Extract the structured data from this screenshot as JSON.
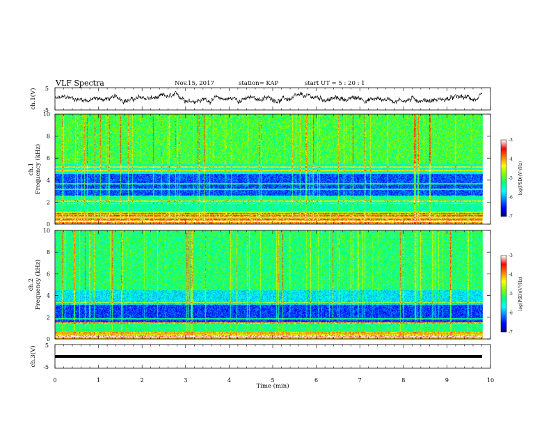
{
  "header": {
    "title": "VLF Spectra",
    "date": "Nov.15, 2017",
    "station": "station= KAP",
    "start": "start  UT =   5 : 20 : 1"
  },
  "chart_data": [
    {
      "type": "line",
      "name": "ch1-waveform",
      "ylabel": "ch.1(V)",
      "ylim": [
        -5,
        5
      ],
      "yticks": [
        "5",
        "-5"
      ],
      "xlim": [
        0,
        10
      ],
      "amplitude_description_values": {
        "mean": 0,
        "approx_range": [
          -2.5,
          2.5
        ]
      }
    },
    {
      "type": "heatmap",
      "name": "ch1-spectrogram",
      "ylabel": "ch.1\nFrequency (kHz)",
      "ylabel_line1": "ch.1",
      "ylabel_line2": "Frequency  (kHz)",
      "ylim": [
        0,
        10
      ],
      "yticks": [
        "0",
        "2",
        "4",
        "6",
        "8",
        "10"
      ],
      "xlim": [
        0,
        10
      ],
      "colorbar": {
        "label": "log(PSD)(V²/Hz)",
        "range": [
          -7,
          -3
        ],
        "ticks": [
          "-3",
          "-4",
          "-5",
          "-6",
          "-7"
        ]
      },
      "lines_khz": [
        0.3,
        0.5,
        0.8,
        1.0,
        1.9,
        2.1,
        3.2,
        3.7,
        4.9,
        5.2
      ]
    },
    {
      "type": "heatmap",
      "name": "ch2-spectrogram",
      "ylabel_line1": "ch.2",
      "ylabel_line2": "Frequency  (kHz)",
      "ylim": [
        0,
        10
      ],
      "yticks": [
        "0",
        "2",
        "4",
        "6",
        "8",
        "10"
      ],
      "xlim": [
        0,
        10
      ],
      "colorbar": {
        "label": "log(PSD)(V²/Hz)",
        "range": [
          -7,
          -3
        ],
        "ticks": [
          "-3",
          "-4",
          "-5",
          "-6",
          "-7"
        ]
      },
      "lines_khz": [
        0.3,
        0.6,
        1.5,
        1.9,
        3.4
      ]
    },
    {
      "type": "line",
      "name": "ch3-waveform",
      "ylabel": "ch.3(V)",
      "ylim": [
        -5,
        5
      ],
      "yticks": [
        "5",
        "-5"
      ],
      "xlim": [
        0,
        10
      ],
      "constant_value": 0,
      "xlabel": "Time  (min)",
      "xticks": [
        "0",
        "1",
        "2",
        "3",
        "4",
        "5",
        "6",
        "7",
        "8",
        "9",
        "10"
      ]
    }
  ],
  "colors": {
    "colormap": [
      "#00007f",
      "#0000ff",
      "#007fff",
      "#00ffff",
      "#00ff7f",
      "#7fff00",
      "#ffff00",
      "#ff7f00",
      "#ff0000",
      "#ffffff"
    ]
  }
}
